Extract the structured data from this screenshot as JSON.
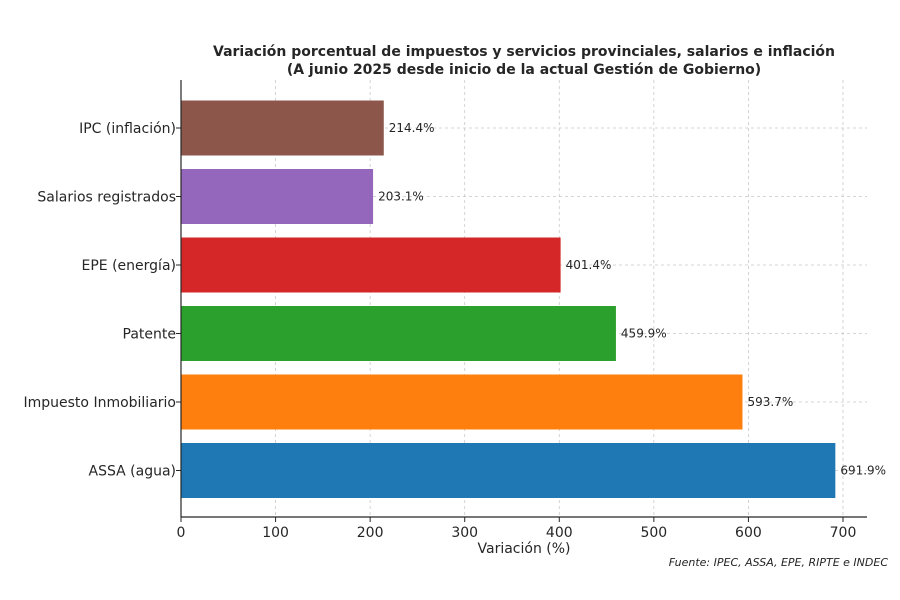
{
  "chart_data": {
    "type": "bar",
    "orientation": "horizontal",
    "title": "Variación porcentual de impuestos y servicios provinciales, salarios e inflación",
    "subtitle": "(A junio 2025 desde inicio de la actual Gestión de Gobierno)",
    "xlabel": "Variación (%)",
    "ylabel": "",
    "xlim": [
      0,
      725
    ],
    "xticks": [
      0,
      100,
      200,
      300,
      400,
      500,
      600,
      700
    ],
    "grid": true,
    "categories": [
      "IPC (inflación)",
      "Salarios registrados",
      "EPE (energía)",
      "Patente",
      "Impuesto Inmobiliario",
      "ASSA (agua)"
    ],
    "values": [
      214.4,
      203.1,
      401.4,
      459.9,
      593.7,
      691.9
    ],
    "labels": [
      "214.4%",
      "203.1%",
      "401.4%",
      "459.9%",
      "593.7%",
      "691.9%"
    ],
    "colors": [
      "#8c564b",
      "#9467bd",
      "#d62728",
      "#2ca02c",
      "#ff7f0e",
      "#1f77b4"
    ],
    "source": "Fuente: IPEC, ASSA, EPE, RIPTE e INDEC"
  }
}
